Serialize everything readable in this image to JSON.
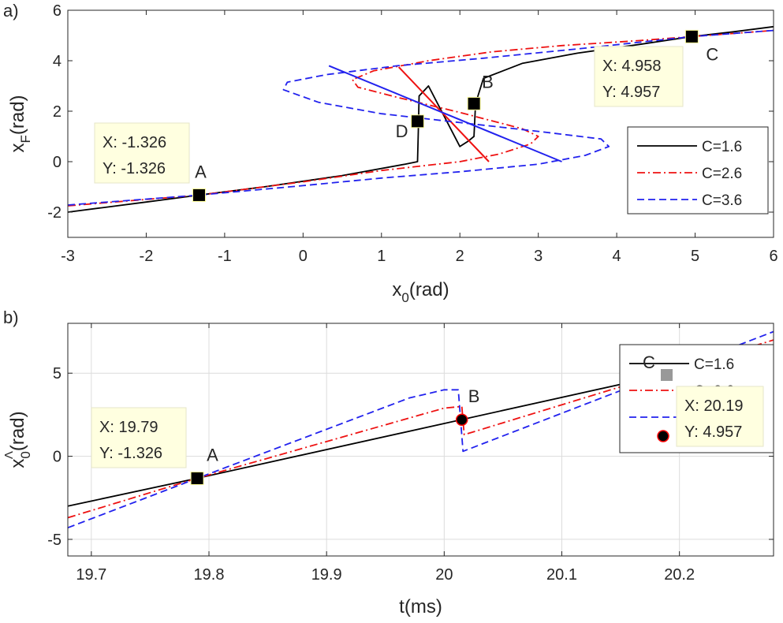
{
  "chart_data": [
    {
      "panel_label": "a)",
      "type": "line",
      "xlabel": "x",
      "xlabel_sub": "0",
      "xlabel_unit": "(rad)",
      "ylabel": "x",
      "ylabel_sub": "F",
      "ylabel_unit": "(rad)",
      "xlim": [
        -3,
        6
      ],
      "ylim": [
        -3,
        6
      ],
      "xticks": [
        "-3",
        "-2",
        "-1",
        "0",
        "1",
        "2",
        "3",
        "4",
        "5",
        "6"
      ],
      "yticks": [
        "-2",
        "0",
        "2",
        "4",
        "6"
      ],
      "grid": false,
      "legend_position": "right",
      "series": [
        {
          "name": "C=1.6",
          "color": "#000000",
          "style": "solid",
          "x": [
            -3,
            -2,
            -1.326,
            -0.5,
            0.5,
            1.3,
            1.46,
            1.47,
            1.48,
            1.6,
            2.0,
            2.1,
            2.18,
            2.2,
            2.3,
            2.8,
            3.5,
            4.3,
            4.958,
            5.5,
            6
          ],
          "y": [
            -2.0,
            -1.6,
            -1.326,
            -1.0,
            -0.55,
            -0.1,
            0.0,
            1.2,
            2.6,
            3.0,
            0.6,
            0.8,
            1.0,
            2.3,
            3.3,
            3.9,
            4.3,
            4.65,
            4.957,
            5.15,
            5.35
          ]
        },
        {
          "name": "C=2.6",
          "color": "#ee1111",
          "style": "dashdot",
          "x": [
            -3,
            -1.326,
            0,
            1.0,
            2.0,
            2.5,
            2.9,
            3.0,
            2.8,
            2.0,
            1.2,
            0.7,
            0.63,
            0.9,
            1.6,
            2.4,
            3.3,
            4.3,
            4.958,
            6
          ],
          "y": [
            -1.75,
            -1.326,
            -0.8,
            -0.35,
            0.0,
            0.3,
            0.7,
            1.0,
            1.3,
            1.95,
            2.55,
            2.95,
            3.25,
            3.6,
            4.0,
            4.35,
            4.6,
            4.8,
            4.957,
            5.2
          ],
          "chords": [
            [
              [
                2.37,
                0.0
              ],
              [
                1.22,
                3.75
              ]
            ]
          ]
        },
        {
          "name": "C=3.6",
          "color": "#2222ee",
          "style": "dashed",
          "x": [
            -3,
            -1.326,
            0,
            1.0,
            2.0,
            3.0,
            3.6,
            3.9,
            3.8,
            3.0,
            2.0,
            1.0,
            0.2,
            -0.25,
            -0.2,
            0.3,
            1.2,
            2.3,
            3.6,
            4.958,
            6
          ],
          "y": [
            -1.72,
            -1.326,
            -0.95,
            -0.65,
            -0.4,
            -0.1,
            0.25,
            0.6,
            0.9,
            1.2,
            1.55,
            1.9,
            2.35,
            2.85,
            3.15,
            3.45,
            3.8,
            4.1,
            4.5,
            4.957,
            5.2
          ],
          "chords": [
            [
              [
                0.33,
                3.8
              ],
              [
                3.3,
                0.0
              ]
            ]
          ]
        }
      ],
      "markers": [
        {
          "label": "A",
          "x": -1.326,
          "y": -1.326
        },
        {
          "label": "B",
          "x": 2.18,
          "y": 2.3
        },
        {
          "label": "C",
          "x": 4.958,
          "y": 4.957
        },
        {
          "label": "D",
          "x": 1.46,
          "y": 1.6
        }
      ],
      "datatips": [
        {
          "x_text": "X: -1.326",
          "y_text": "Y: -1.326",
          "anchor": "A"
        },
        {
          "x_text": "X: 4.958",
          "y_text": "Y: 4.957",
          "anchor": "C"
        }
      ]
    },
    {
      "panel_label": "b)",
      "type": "line",
      "xlabel": "t(ms)",
      "ylabel": "x",
      "ylabel_sub": "0",
      "ylabel_sup": "Λ",
      "ylabel_unit": "(rad)",
      "xlim": [
        19.68,
        20.28
      ],
      "ylim": [
        -6,
        8
      ],
      "xticks": [
        "19.7",
        "19.8",
        "19.9",
        "20",
        "20.1",
        "20.2"
      ],
      "yticks": [
        "-5",
        "0",
        "5"
      ],
      "grid": true,
      "legend_position": "top-right",
      "series": [
        {
          "name": "C=1.6",
          "color": "#000000",
          "style": "solid",
          "x": [
            19.68,
            19.79,
            20.19,
            20.28
          ],
          "y": [
            -3.0,
            -1.326,
            4.957,
            6.4
          ]
        },
        {
          "name": "C=2.6",
          "color": "#ee1111",
          "style": "dashdot",
          "x": [
            19.68,
            19.79,
            20.0,
            20.015,
            20.017,
            20.28
          ],
          "y": [
            -3.7,
            -1.326,
            2.9,
            3.0,
            1.3,
            7.0
          ]
        },
        {
          "name": "C=3.6",
          "color": "#2222ee",
          "style": "dashed",
          "x": [
            19.68,
            19.79,
            19.97,
            20.0,
            20.012,
            20.016,
            20.28
          ],
          "y": [
            -4.3,
            -1.326,
            3.5,
            4.0,
            4.0,
            0.3,
            7.5
          ]
        }
      ],
      "markers": [
        {
          "label": "A",
          "x": 19.79,
          "y": -1.326,
          "shape": "square"
        },
        {
          "label": "B",
          "x": 20.015,
          "y": 2.2,
          "shape": "circle"
        }
      ],
      "datatips": [
        {
          "x_text": "X: 19.79",
          "y_text": "Y: -1.326",
          "anchor": "A"
        },
        {
          "x_text": "X: 20.19",
          "y_text": "Y: 4.957",
          "anchor": "legend"
        }
      ],
      "overlay_letter": "C"
    }
  ]
}
